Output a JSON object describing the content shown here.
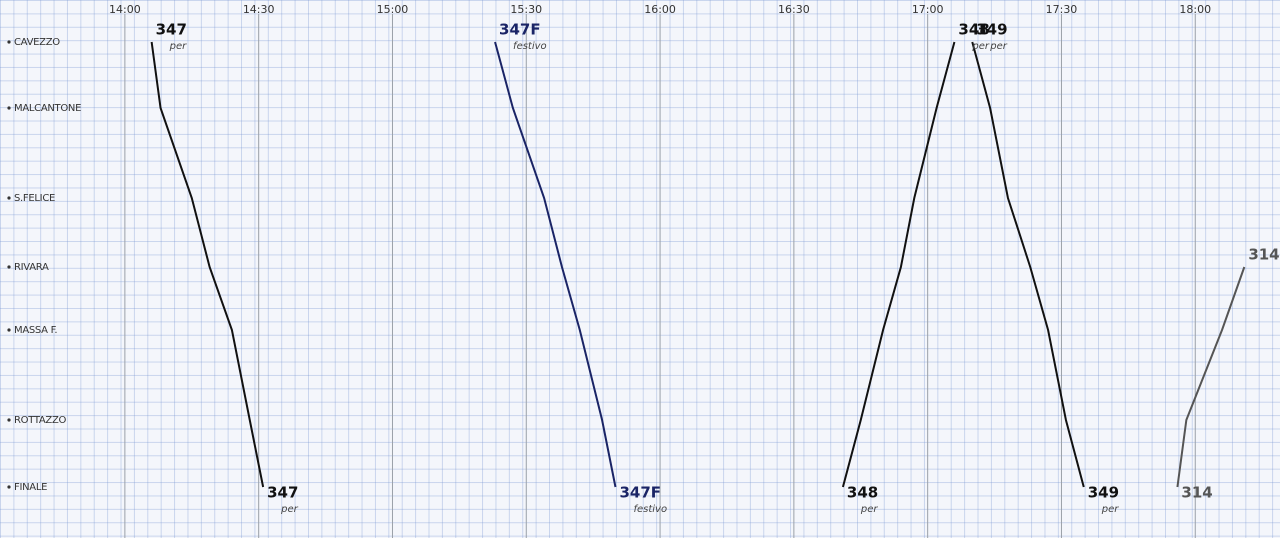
{
  "chart_data": {
    "type": "line",
    "categories": [
      "CAVEZZO",
      "MALCANTONE",
      "S.FELICE",
      "RIVARA",
      "MASSA F.",
      "ROTTAZZO",
      "FINALE"
    ],
    "xlim": [
      812,
      1099
    ],
    "xticks": [
      {
        "value": 840,
        "label": "14:00"
      },
      {
        "value": 870,
        "label": "14:30"
      },
      {
        "value": 900,
        "label": "15:00"
      },
      {
        "value": 930,
        "label": "15:30"
      },
      {
        "value": 960,
        "label": "16:00"
      },
      {
        "value": 990,
        "label": "16:30"
      },
      {
        "value": 1020,
        "label": "17:00"
      },
      {
        "value": 1050,
        "label": "17:30"
      },
      {
        "value": 1080,
        "label": "18:00"
      }
    ],
    "grid": true,
    "series": [
      {
        "name": "347",
        "note": "per",
        "color": "#111111",
        "values": [
          846,
          848,
          855,
          859,
          864,
          868,
          871
        ]
      },
      {
        "name": "347F",
        "note": "festivo",
        "color": "#1a2466",
        "values": [
          923,
          927,
          934,
          938,
          942,
          947,
          950
        ]
      },
      {
        "name": "348",
        "note": "per",
        "color": "#111111",
        "values": [
          1026,
          1022,
          1017,
          1014,
          1010,
          1005,
          1001
        ]
      },
      {
        "name": "349",
        "note": "per",
        "color": "#111111",
        "values": [
          1030,
          1034,
          1038,
          1043,
          1047,
          1051,
          1055
        ]
      },
      {
        "name": "314",
        "color": "#555555",
        "values": [
          null,
          null,
          null,
          1091,
          1086,
          1078,
          1076
        ]
      }
    ]
  }
}
